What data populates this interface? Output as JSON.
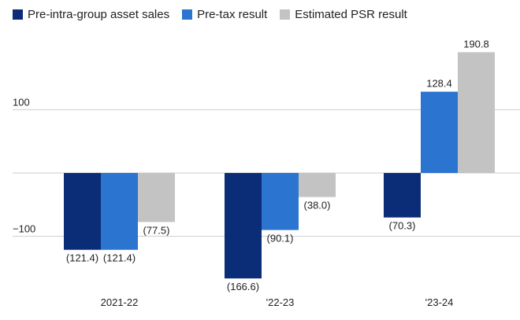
{
  "chart_data": {
    "type": "bar",
    "categories": [
      "2021-22",
      "'22-23",
      "'23-24"
    ],
    "series": [
      {
        "name": "Pre-intra-group asset sales",
        "color": "#0b2d78",
        "values": [
          -121.4,
          -166.6,
          -70.3
        ],
        "labels": [
          "(121.4)",
          "(166.6)",
          "(70.3)"
        ]
      },
      {
        "name": "Pre-tax result",
        "color": "#2b74cf",
        "values": [
          -121.4,
          -90.1,
          128.4
        ],
        "labels": [
          "(121.4)",
          "(90.1)",
          "128.4"
        ]
      },
      {
        "name": "Estimated PSR result",
        "color": "#c3c3c3",
        "values": [
          -77.5,
          -38.0,
          190.8
        ],
        "labels": [
          "(77.5)",
          "(38.0)",
          "190.8"
        ]
      }
    ],
    "yticks": [
      100,
      0,
      -100
    ],
    "ytick_labels": [
      "100",
      "",
      "−100"
    ],
    "ylim": [
      -200,
      200
    ],
    "grid": true,
    "legend": "top-left"
  }
}
